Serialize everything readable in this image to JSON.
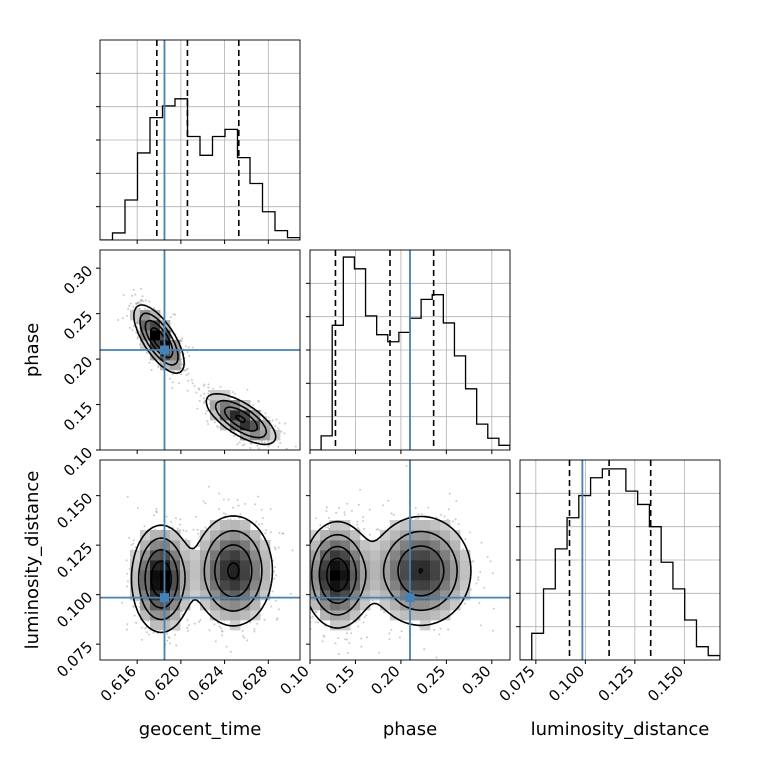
{
  "chart_data": {
    "type": "corner",
    "parameters": [
      "geocent_time",
      "phase",
      "luminosity_distance"
    ],
    "colors": {
      "truth": "#4682b4",
      "hist": "#000000",
      "quantile": "#000000",
      "grid": "#b0b0b0",
      "scatter": "#8a8a8a"
    },
    "truths": {
      "geocent_time": 0.6185,
      "phase": 0.21,
      "luminosity_distance": 0.0985
    },
    "quantiles": {
      "geocent_time": [
        0.6178,
        0.6206,
        0.6253
      ],
      "phase": [
        0.128,
        0.188,
        0.236
      ],
      "luminosity_distance": [
        0.092,
        0.112,
        0.133
      ]
    },
    "ranges": {
      "geocent_time": [
        0.6126,
        0.6309
      ],
      "phase": [
        0.1,
        0.32
      ],
      "luminosity_distance": [
        0.067,
        0.168
      ]
    },
    "ticks": {
      "geocent_time": [
        "0.616",
        "0.620",
        "0.624",
        "0.628"
      ],
      "phase": [
        "0.10",
        "0.15",
        "0.20",
        "0.25",
        "0.30"
      ],
      "luminosity_distance": [
        "0.075",
        "0.100",
        "0.125",
        "0.150"
      ]
    },
    "hist_ticks": {
      "geocent_time": [
        0.56,
        0.28,
        0.0
      ],
      "phase": [
        0.56,
        0.28,
        0.0
      ],
      "luminosity_distance": [
        0.56,
        0.28,
        0.0
      ]
    },
    "histograms": {
      "geocent_time": [
        0.0,
        0.03,
        0.17,
        0.37,
        0.52,
        0.57,
        0.6,
        0.44,
        0.36,
        0.44,
        0.47,
        0.35,
        0.24,
        0.12,
        0.04,
        0.01
      ],
      "phase": [
        0.0,
        0.06,
        0.53,
        0.82,
        0.77,
        0.57,
        0.49,
        0.46,
        0.5,
        0.56,
        0.64,
        0.66,
        0.54,
        0.4,
        0.26,
        0.11,
        0.05,
        0.02
      ],
      "luminosity_distance": [
        0.0,
        0.06,
        0.16,
        0.25,
        0.32,
        0.37,
        0.41,
        0.43,
        0.43,
        0.38,
        0.35,
        0.3,
        0.22,
        0.16,
        0.09,
        0.03,
        0.01
      ]
    },
    "hist_max": 0.85,
    "hist_max_ld": 0.45,
    "pairs": [
      {
        "x": "geocent_time",
        "y": "phase",
        "modes": [
          {
            "mx": 0.618,
            "my": 0.222,
            "sx": 0.0011,
            "sy": 0.018,
            "rho": -0.7,
            "w": 0.55
          },
          {
            "mx": 0.6255,
            "my": 0.134,
            "sx": 0.0016,
            "sy": 0.014,
            "rho": -0.7,
            "w": 0.45
          }
        ]
      },
      {
        "x": "geocent_time",
        "y": "luminosity_distance",
        "modes": [
          {
            "mx": 0.6182,
            "my": 0.108,
            "sx": 0.0013,
            "sy": 0.013,
            "rho": 0.0,
            "w": 0.55
          },
          {
            "mx": 0.6248,
            "my": 0.112,
            "sx": 0.0018,
            "sy": 0.014,
            "rho": 0.0,
            "w": 0.45
          }
        ]
      },
      {
        "x": "phase",
        "y": "luminosity_distance",
        "modes": [
          {
            "mx": 0.13,
            "my": 0.11,
            "sx": 0.018,
            "sy": 0.013,
            "rho": 0.0,
            "w": 0.55
          },
          {
            "mx": 0.222,
            "my": 0.112,
            "sx": 0.028,
            "sy": 0.014,
            "rho": 0.0,
            "w": 0.45
          }
        ]
      }
    ]
  }
}
